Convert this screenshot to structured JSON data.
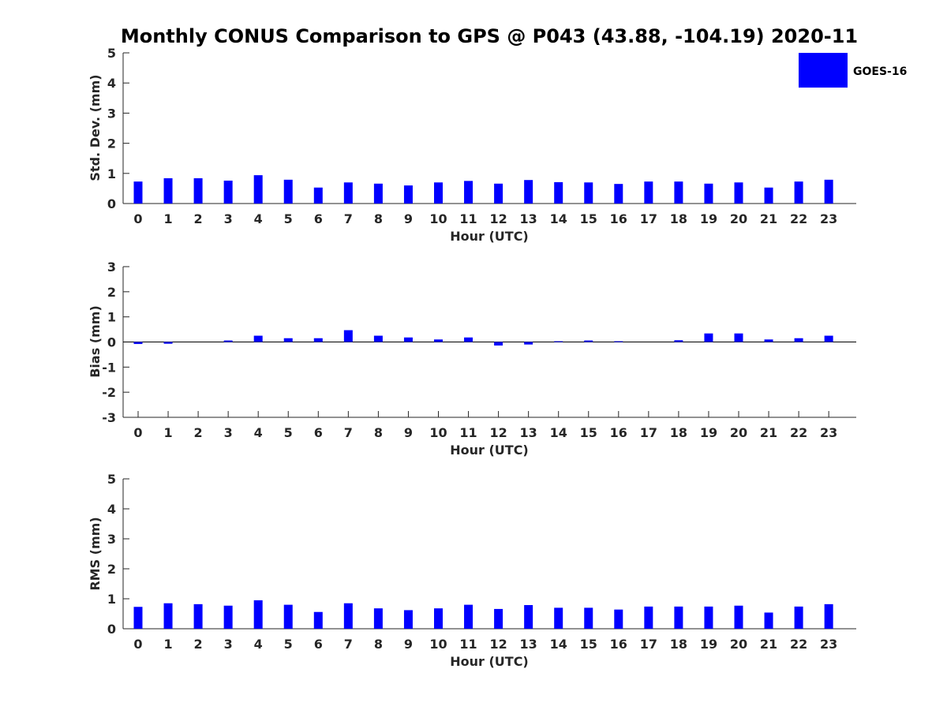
{
  "title": "Monthly CONUS Comparison to GPS @ P043 (43.88, -104.19) 2020-11",
  "legend": {
    "label": "GOES-16",
    "color": "#0000ff"
  },
  "chart_data": [
    {
      "type": "bar",
      "title": "Monthly CONUS Comparison to GPS @ P043 (43.88, -104.19) 2020-11",
      "xlabel": "Hour (UTC)",
      "ylabel": "Std. Dev. (mm)",
      "ylim": [
        0,
        5
      ],
      "yticks": [
        "0",
        "1",
        "2",
        "3",
        "4",
        "5"
      ],
      "categories": [
        "0",
        "1",
        "2",
        "3",
        "4",
        "5",
        "6",
        "7",
        "8",
        "9",
        "10",
        "11",
        "12",
        "13",
        "14",
        "15",
        "16",
        "17",
        "18",
        "19",
        "20",
        "21",
        "22",
        "23"
      ],
      "series": [
        {
          "name": "GOES-16",
          "values": [
            0.73,
            0.84,
            0.84,
            0.76,
            0.94,
            0.79,
            0.53,
            0.7,
            0.66,
            0.6,
            0.7,
            0.75,
            0.66,
            0.78,
            0.71,
            0.7,
            0.65,
            0.73,
            0.73,
            0.66,
            0.7,
            0.53,
            0.73,
            0.79
          ]
        }
      ]
    },
    {
      "type": "bar",
      "xlabel": "Hour (UTC)",
      "ylabel": "Bias (mm)",
      "ylim": [
        -3,
        3
      ],
      "yticks": [
        "-3",
        "-2",
        "-1",
        "0",
        "1",
        "2",
        "3"
      ],
      "categories": [
        "0",
        "1",
        "2",
        "3",
        "4",
        "5",
        "6",
        "7",
        "8",
        "9",
        "10",
        "11",
        "12",
        "13",
        "14",
        "15",
        "16",
        "17",
        "18",
        "19",
        "20",
        "21",
        "22",
        "23"
      ],
      "series": [
        {
          "name": "GOES-16",
          "values": [
            -0.08,
            -0.07,
            0.0,
            0.06,
            0.25,
            0.15,
            0.15,
            0.47,
            0.25,
            0.18,
            0.1,
            0.18,
            -0.14,
            -0.1,
            0.03,
            0.06,
            0.03,
            0.0,
            0.07,
            0.34,
            0.34,
            0.1,
            0.15,
            0.25
          ]
        }
      ]
    },
    {
      "type": "bar",
      "xlabel": "Hour (UTC)",
      "ylabel": "RMS (mm)",
      "ylim": [
        0,
        5
      ],
      "yticks": [
        "0",
        "1",
        "2",
        "3",
        "4",
        "5"
      ],
      "categories": [
        "0",
        "1",
        "2",
        "3",
        "4",
        "5",
        "6",
        "7",
        "8",
        "9",
        "10",
        "11",
        "12",
        "13",
        "14",
        "15",
        "16",
        "17",
        "18",
        "19",
        "20",
        "21",
        "22",
        "23"
      ],
      "series": [
        {
          "name": "GOES-16",
          "values": [
            0.73,
            0.85,
            0.82,
            0.77,
            0.95,
            0.8,
            0.56,
            0.85,
            0.68,
            0.62,
            0.68,
            0.8,
            0.66,
            0.79,
            0.7,
            0.7,
            0.64,
            0.74,
            0.74,
            0.74,
            0.77,
            0.54,
            0.74,
            0.82
          ]
        }
      ]
    }
  ]
}
